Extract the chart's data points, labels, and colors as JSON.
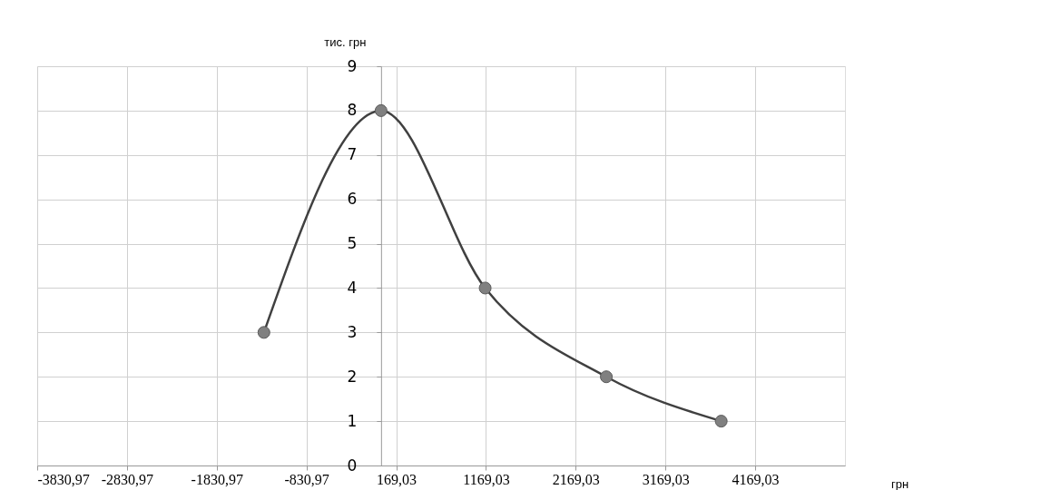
{
  "chart_data": {
    "type": "line",
    "xlabel": "грн",
    "ylabel": "тис. грн",
    "x": [
      -1305,
      0,
      1160,
      2510,
      3790
    ],
    "series": [
      {
        "color": "#404040",
        "values": [
          3,
          8,
          4,
          2,
          1
        ]
      }
    ],
    "marker": "circle",
    "line_style": "solid",
    "grid": true,
    "xlim": [
      -3830.97,
      5169.03
    ],
    "ylim": [
      0,
      9
    ],
    "yticks": [
      0,
      1,
      2,
      3,
      4,
      5,
      6,
      7,
      8,
      9
    ],
    "xticks": [
      {
        "value": -3830.97,
        "label": "-3830,97"
      },
      {
        "value": -2830.97,
        "label": "-2830,97"
      },
      {
        "value": -1830.97,
        "label": "-1830,97"
      },
      {
        "value": -830.97,
        "label": "-830,97"
      },
      {
        "value": 169.03,
        "label": "169,03"
      },
      {
        "value": 1169.03,
        "label": "1169,03"
      },
      {
        "value": 2169.03,
        "label": "2169,03"
      },
      {
        "value": 3169.03,
        "label": "3169,03"
      },
      {
        "value": 4169.03,
        "label": "4169,03"
      }
    ]
  }
}
